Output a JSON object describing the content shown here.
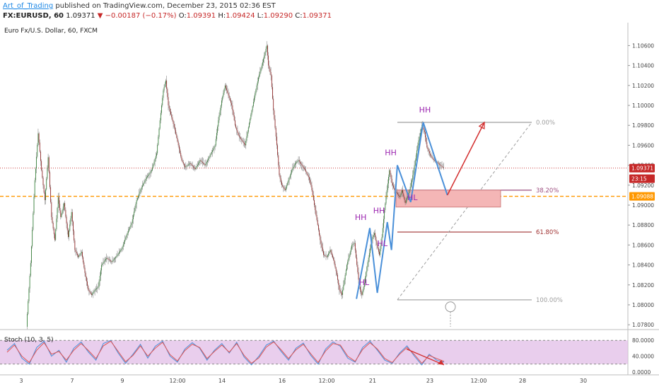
{
  "header": {
    "author": "Art_of_Trading",
    "published_text": "published on TradingView.com, December 23, 2015 02:36 EST",
    "symbol": "FX:EURUSD, 60",
    "last": "1.09371",
    "change": "−0.00187 (−0.17%)",
    "open_label": "O:",
    "open": "1.09391",
    "high_label": "H:",
    "high": "1.09424",
    "low_label": "L:",
    "low": "1.09290",
    "close_label": "C:",
    "close": "1.09371"
  },
  "colors": {
    "up": "#2e7d32",
    "down": "#8e1f1f",
    "zigzag": "#4a90d9",
    "swing_label": "#9c27b0",
    "arrow": "#d32f2f",
    "support": "#ff9800",
    "zone": "#f4b6b6",
    "stoch_band": "#e1bee7"
  },
  "chart_data": [
    {
      "type": "candlestick",
      "title": "Euro Fx/U.S. Dollar, 60, FXCM",
      "ylim": [
        1.0778,
        1.1083
      ],
      "y_ticks": [
        "1.10600",
        "1.10400",
        "1.10200",
        "1.10000",
        "1.09800",
        "1.09600",
        "1.09400",
        "1.09200",
        "1.09000",
        "1.08800",
        "1.08600",
        "1.08400",
        "1.08200",
        "1.08000",
        "1.07800"
      ],
      "x_ticks": [
        "3",
        "7",
        "9",
        "12:00",
        "14",
        "16",
        "12:00",
        "21",
        "23",
        "12:00",
        "28",
        "30"
      ],
      "price_badges": [
        {
          "label": "1.09371",
          "value": 1.09371,
          "color": "#c62828"
        },
        {
          "label": "23:15",
          "value": 1.09265,
          "color": "#c62828"
        },
        {
          "label": "1.09088",
          "value": 1.09088,
          "color": "#ff9800"
        }
      ],
      "horizontal_lines": [
        {
          "value": 1.09371,
          "style": "dotted",
          "color": "#c62828"
        },
        {
          "value": 1.09088,
          "style": "dashed",
          "color": "#ff9800"
        }
      ],
      "price_path": [
        [
          0,
          1.0778
        ],
        [
          5,
          1.0842
        ],
        [
          10,
          1.0925
        ],
        [
          14,
          1.0972
        ],
        [
          18,
          1.0935
        ],
        [
          22,
          1.0905
        ],
        [
          26,
          1.0948
        ],
        [
          30,
          1.0888
        ],
        [
          34,
          1.0865
        ],
        [
          38,
          1.0908
        ],
        [
          41,
          1.0888
        ],
        [
          45,
          1.0902
        ],
        [
          50,
          1.0868
        ],
        [
          54,
          1.0893
        ],
        [
          58,
          1.0855
        ],
        [
          62,
          1.0848
        ],
        [
          66,
          1.0853
        ],
        [
          70,
          1.0832
        ],
        [
          74,
          1.0815
        ],
        [
          78,
          1.081
        ],
        [
          82,
          1.0815
        ],
        [
          86,
          1.0818
        ],
        [
          90,
          1.084
        ],
        [
          96,
          1.0847
        ],
        [
          102,
          1.0843
        ],
        [
          108,
          1.0849
        ],
        [
          114,
          1.0856
        ],
        [
          120,
          1.087
        ],
        [
          126,
          1.0882
        ],
        [
          132,
          1.0905
        ],
        [
          138,
          1.0918
        ],
        [
          144,
          1.0928
        ],
        [
          150,
          1.0935
        ],
        [
          156,
          1.0952
        ],
        [
          160,
          1.0985
        ],
        [
          164,
          1.1015
        ],
        [
          167,
          1.1025
        ],
        [
          170,
          1.1
        ],
        [
          174,
          1.0988
        ],
        [
          178,
          1.0975
        ],
        [
          182,
          1.096
        ],
        [
          186,
          1.0945
        ],
        [
          190,
          1.0938
        ],
        [
          196,
          1.0942
        ],
        [
          202,
          1.0936
        ],
        [
          208,
          1.0945
        ],
        [
          214,
          1.094
        ],
        [
          220,
          1.095
        ],
        [
          226,
          1.096
        ],
        [
          230,
          1.0985
        ],
        [
          234,
          1.1005
        ],
        [
          238,
          1.102
        ],
        [
          242,
          1.101
        ],
        [
          246,
          1.1
        ],
        [
          250,
          1.098
        ],
        [
          254,
          1.097
        ],
        [
          258,
          1.0965
        ],
        [
          262,
          1.096
        ],
        [
          266,
          1.0978
        ],
        [
          270,
          1.0995
        ],
        [
          274,
          1.1012
        ],
        [
          278,
          1.1028
        ],
        [
          282,
          1.104
        ],
        [
          285,
          1.105
        ],
        [
          288,
          1.106
        ],
        [
          290,
          1.104
        ],
        [
          293,
          1.103
        ],
        [
          296,
          1.0995
        ],
        [
          300,
          1.096
        ],
        [
          303,
          1.093
        ],
        [
          306,
          1.092
        ],
        [
          310,
          1.0915
        ],
        [
          314,
          1.0925
        ],
        [
          318,
          1.0935
        ],
        [
          322,
          1.0942
        ],
        [
          326,
          1.0945
        ],
        [
          330,
          1.094
        ],
        [
          334,
          1.0935
        ],
        [
          338,
          1.0928
        ],
        [
          341,
          1.092
        ],
        [
          344,
          1.0905
        ],
        [
          348,
          1.0885
        ],
        [
          352,
          1.0865
        ],
        [
          356,
          1.085
        ],
        [
          360,
          1.0848
        ],
        [
          364,
          1.0855
        ],
        [
          368,
          1.0845
        ],
        [
          372,
          1.083
        ],
        [
          375,
          1.0815
        ],
        [
          378,
          1.081
        ],
        [
          381,
          1.0825
        ],
        [
          384,
          1.084
        ],
        [
          387,
          1.085
        ],
        [
          390,
          1.086
        ],
        [
          393,
          1.0862
        ],
        [
          396,
          1.084
        ],
        [
          399,
          1.0818
        ],
        [
          402,
          1.081
        ],
        [
          405,
          1.0822
        ],
        [
          408,
          1.0838
        ],
        [
          411,
          1.0852
        ],
        [
          414,
          1.0866
        ],
        [
          417,
          1.0872
        ],
        [
          420,
          1.086
        ],
        [
          423,
          1.085
        ],
        [
          426,
          1.0868
        ],
        [
          429,
          1.0895
        ],
        [
          432,
          1.0915
        ],
        [
          435,
          1.0935
        ],
        [
          438,
          1.0922
        ],
        [
          441,
          1.0915
        ],
        [
          444,
          1.0912
        ],
        [
          447,
          1.0908
        ],
        [
          450,
          1.0915
        ],
        [
          454,
          1.0902
        ],
        [
          458,
          1.0912
        ],
        [
          462,
          1.0925
        ],
        [
          466,
          1.0945
        ],
        [
          470,
          1.0965
        ],
        [
          474,
          1.098
        ],
        [
          477,
          1.0973
        ],
        [
          480,
          1.0958
        ],
        [
          484,
          1.095
        ],
        [
          488,
          1.0945
        ],
        [
          492,
          1.0943
        ],
        [
          496,
          1.094
        ],
        [
          500,
          1.09371
        ]
      ],
      "swing_labels": [
        {
          "text": "HH",
          "value": 1.0885
        },
        {
          "text": "HL",
          "value": 1.082
        },
        {
          "text": "HH",
          "value": 1.0892
        },
        {
          "text": "HL",
          "value": 1.0859
        },
        {
          "text": "HH",
          "value": 1.095
        },
        {
          "text": "HL",
          "value": 1.0905
        },
        {
          "text": "HH",
          "value": 1.0993
        }
      ],
      "fibonacci": {
        "levels": [
          {
            "label": "0.00%",
            "value": 1.0983
          },
          {
            "label": "38.20%",
            "value": 1.0915
          },
          {
            "label": "61.80%",
            "value": 1.0873
          },
          {
            "label": "100.00%",
            "value": 1.0805
          }
        ]
      }
    },
    {
      "type": "line",
      "title": "Stoch (10, 3, 5)",
      "ylim": [
        0,
        100
      ],
      "y_ticks": [
        "80.0000",
        "40.0000",
        "0.0000"
      ],
      "band": [
        20,
        80
      ],
      "series": [
        {
          "color": "#4a90d9",
          "values": [
            55,
            72,
            35,
            20,
            62,
            78,
            40,
            55,
            25,
            60,
            76,
            50,
            30,
            72,
            80,
            48,
            22,
            45,
            70,
            35,
            65,
            78,
            40,
            25,
            58,
            74,
            60,
            30,
            55,
            72,
            48,
            75,
            38,
            18,
            40,
            68,
            78,
            52,
            30,
            60,
            73,
            42,
            20,
            58,
            76,
            65,
            35,
            25,
            62,
            78,
            55,
            30,
            22,
            48,
            66,
            40,
            18,
            45,
            30,
            25
          ]
        },
        {
          "color": "#e05555",
          "values": [
            50,
            68,
            40,
            24,
            55,
            74,
            45,
            52,
            30,
            55,
            72,
            54,
            34,
            66,
            78,
            52,
            26,
            42,
            66,
            40,
            60,
            75,
            44,
            28,
            54,
            70,
            62,
            34,
            52,
            68,
            50,
            72,
            42,
            22,
            36,
            63,
            76,
            56,
            34,
            56,
            70,
            46,
            24,
            53,
            72,
            68,
            40,
            27,
            57,
            74,
            58,
            34,
            24,
            45,
            62,
            44,
            22,
            42,
            34,
            27
          ]
        }
      ]
    }
  ]
}
